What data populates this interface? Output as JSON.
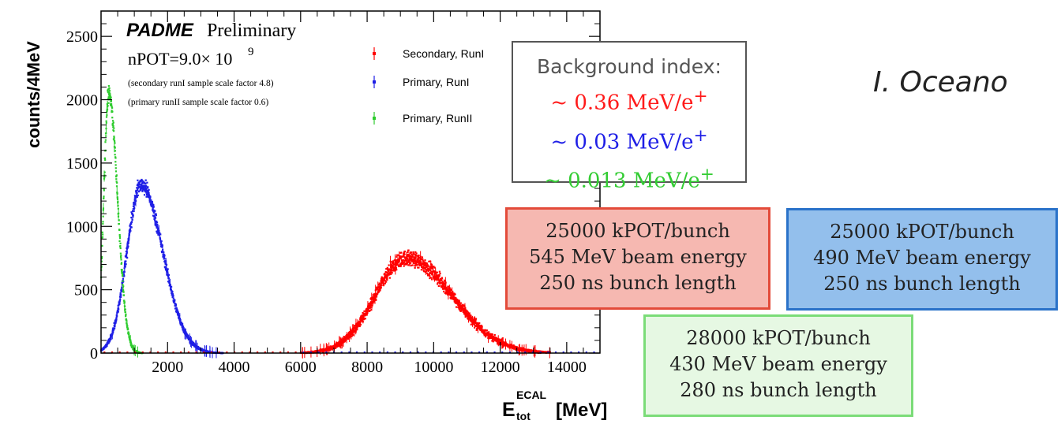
{
  "chart_data": {
    "type": "scatter",
    "ylabel": "counts/4MeV",
    "xlabel_main": "E",
    "xlabel_sup": "ECAL",
    "xlabel_sub": "tot",
    "xlabel_unit": "[MeV]",
    "xlim": [
      0,
      15000
    ],
    "ylim": [
      0,
      2700
    ],
    "x_ticks": [
      2000,
      4000,
      6000,
      8000,
      10000,
      12000,
      14000
    ],
    "y_ticks": [
      0,
      500,
      1000,
      1500,
      2000,
      2500
    ],
    "legend_position": "top-right",
    "annotations": {
      "experiment": "PADME",
      "label": "Preliminary",
      "npot": "nPOT=9.0× 10",
      "npot_exp": "9",
      "note1": "(secondary runI sample scale factor 4.8)",
      "note2": "(primary runII sample scale factor 0.6)"
    },
    "series": [
      {
        "name": "Secondary, RunI",
        "color": "#ff0000",
        "peak_x": 9200,
        "peak_y": 750,
        "sigma_left": 950,
        "sigma_right": 1350,
        "range": [
          6000,
          13500
        ]
      },
      {
        "name": "Primary, RunI",
        "color": "#1f1fe6",
        "peak_x": 1200,
        "peak_y": 1330,
        "sigma_left": 420,
        "sigma_right": 650,
        "range": [
          0,
          6000
        ]
      },
      {
        "name": "Primary, RunII",
        "color": "#2ecc2e",
        "peak_x": 230,
        "peak_y": 2050,
        "sigma_left": 150,
        "sigma_right": 260,
        "range": [
          0,
          1800
        ]
      }
    ]
  },
  "background_box": {
    "title": "Background index:",
    "values": [
      {
        "text": "~ 0.36 MeV/e",
        "sup": "+",
        "color": "#ff1a1a"
      },
      {
        "text": "~ 0.03 MeV/e",
        "sup": "+",
        "color": "#1f1fe6"
      },
      {
        "text": "~ 0.013 MeV/e",
        "sup": "+",
        "color": "#33cc33"
      }
    ]
  },
  "conditions": [
    {
      "lines": [
        "25000 kPOT/bunch",
        "545 MeV beam energy",
        "250 ns bunch length"
      ]
    },
    {
      "lines": [
        "25000 kPOT/bunch",
        "490 MeV beam energy",
        "250 ns bunch length"
      ]
    },
    {
      "lines": [
        "28000 kPOT/bunch",
        "430 MeV beam energy",
        "280 ns bunch length"
      ]
    }
  ],
  "author": "I. Oceano"
}
